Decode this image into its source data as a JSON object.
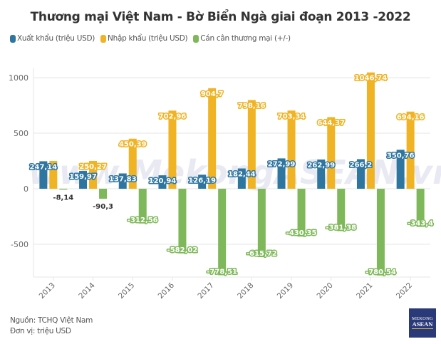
{
  "chart_data": {
    "type": "bar",
    "title": "Thương mại Việt Nam - Bờ Biển Ngà giai đoạn 2013 -2022",
    "categories": [
      "2013",
      "2014",
      "2015",
      "2016",
      "2017",
      "2018",
      "2019",
      "2020",
      "2021",
      "2022"
    ],
    "series": [
      {
        "name": "Xuất khẩu (triệu USD)",
        "color": "#2e75a0",
        "values": [
          247.14,
          159.97,
          137.83,
          120.94,
          126.19,
          182.44,
          272.99,
          262.99,
          266.2,
          350.76
        ],
        "labels": [
          "247,14",
          "159,97",
          "137,83",
          "120,94",
          "126,19",
          "182,44",
          "272,99",
          "262,99",
          "266,2",
          "350,76"
        ]
      },
      {
        "name": "Nhập khẩu (triệu USD)",
        "color": "#f0b323",
        "values": [
          250.27,
          250.27,
          450.39,
          702.96,
          904.7,
          798.16,
          703.34,
          644.37,
          1046.74,
          694.16
        ],
        "labels": [
          "",
          "250,27",
          "450,39",
          "702,96",
          "904,7",
          "798,16",
          "703,34",
          "644,37",
          "1046,74",
          "694,16"
        ]
      },
      {
        "name": "Cán cân thương mại (+/-)",
        "color": "#7fb85a",
        "values": [
          -8.14,
          -90.3,
          -312.56,
          -582.02,
          -778.51,
          -615.72,
          -430.35,
          -381.38,
          -780.54,
          -343.4
        ],
        "labels": [
          "-8,14",
          "-90,3",
          "-312,56",
          "-582,02",
          "-778,51",
          "-615,72",
          "-430,35",
          "-381,38",
          "-780,54",
          "-343,4"
        ]
      }
    ],
    "yticks": [
      {
        "value": 1000,
        "label": "1000"
      },
      {
        "value": 500,
        "label": "500"
      },
      {
        "value": 0,
        "label": "0"
      },
      {
        "value": -500,
        "label": "-500"
      }
    ],
    "ylim": [
      -780,
      1060
    ],
    "grid": true,
    "legend_position": "top-left",
    "xlabel": "",
    "ylabel": ""
  },
  "legend": [
    "Xuất khẩu (triệu USD)",
    "Nhập khẩu (triệu USD)",
    "Cán cân thương mại (+/-)"
  ],
  "footer": {
    "source": "Nguồn: TCHQ Việt Nam",
    "unit": "Đơn vị: triệu USD"
  },
  "watermark": "www.MekongASEAN.vn",
  "logo": {
    "line1": "MEKONG",
    "line2": "ASEAN"
  }
}
